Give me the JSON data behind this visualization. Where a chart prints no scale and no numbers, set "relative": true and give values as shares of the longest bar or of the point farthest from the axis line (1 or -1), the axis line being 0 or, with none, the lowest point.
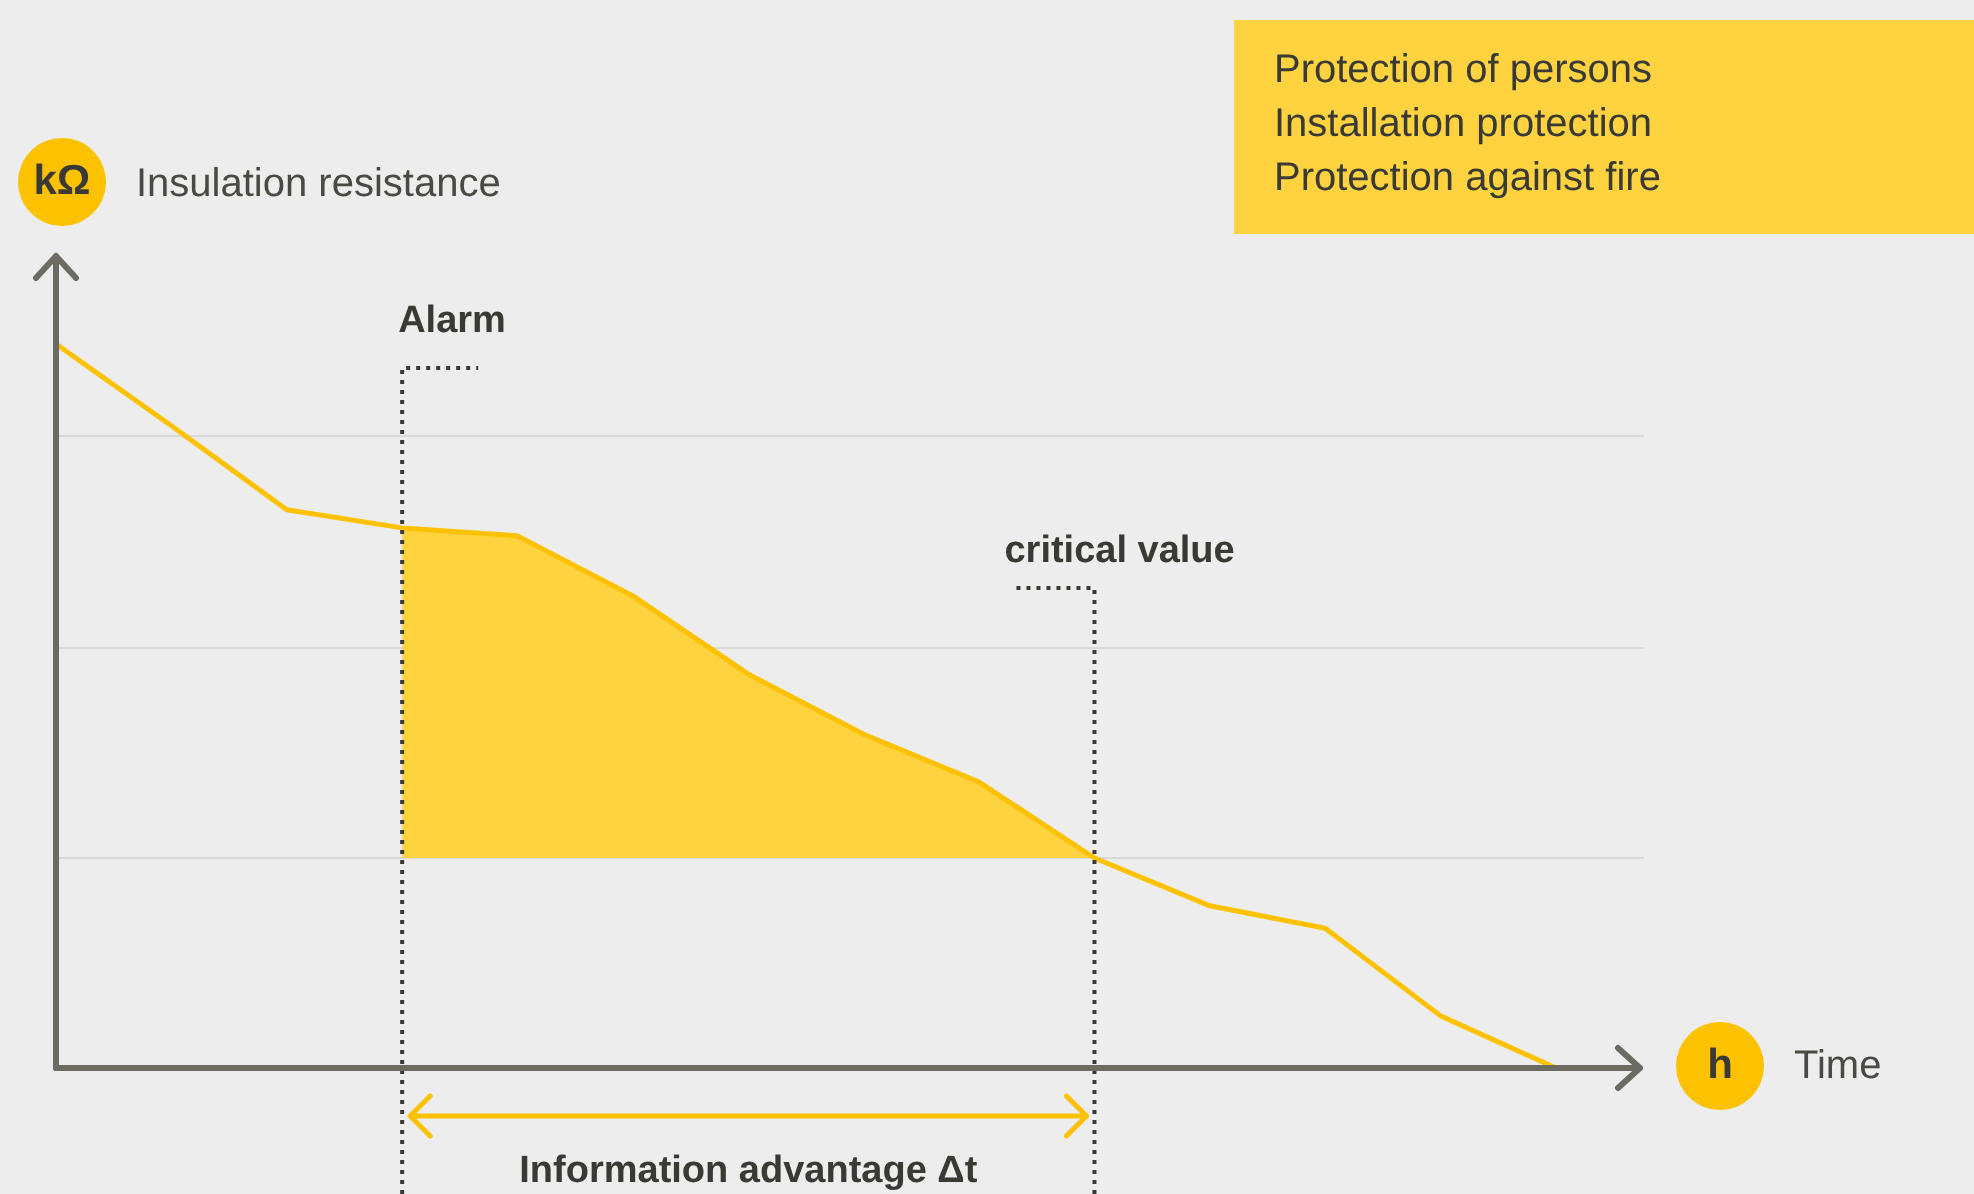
{
  "chart_data": {
    "type": "line",
    "relative": true,
    "ylabel": "Insulation resistance",
    "xlabel": "Time",
    "marker": "none",
    "legend": false,
    "tick_labels": false,
    "categories": [
      null,
      null,
      null,
      null,
      null,
      null,
      null,
      null,
      null,
      null,
      null,
      null,
      null,
      null
    ],
    "series": [
      {
        "type": "line",
        "color": "#fcc200",
        "values": [
          1,
          0.887,
          0.771,
          0.746,
          0.735,
          0.652,
          0.544,
          0.461,
          0.395,
          0.29,
          0.224,
          0.193,
          0.072,
          0
        ]
      },
      {
        "type": "area",
        "color": "#ffd23f",
        "values": [
          null,
          null,
          null,
          0.746,
          0.735,
          0.652,
          0.544,
          0.461,
          0.395,
          0.29,
          null,
          null,
          null,
          null
        ]
      }
    ],
    "ref_lines": [
      {
        "axis": "y",
        "value": 0.873,
        "color": "#d9d9d9"
      },
      {
        "axis": "y",
        "value": 0.58,
        "color": "#d9d9d9"
      },
      {
        "axis": "y",
        "value": 0.29,
        "color": "#d9d9d9"
      }
    ],
    "annotations": [
      "kΩ",
      "h",
      "Alarm",
      "critical value",
      "Information advantage Δt",
      "Protection of persons",
      "Installation protection",
      "Protection against fire"
    ]
  }
}
